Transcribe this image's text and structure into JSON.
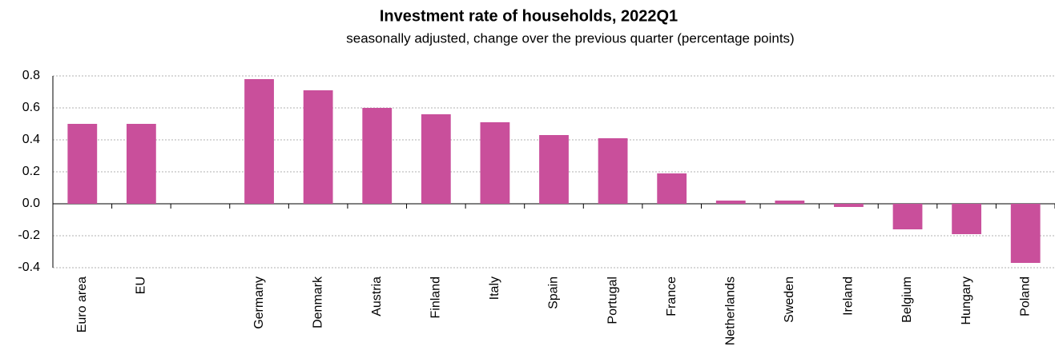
{
  "chart_data": {
    "type": "bar",
    "title": "Investment rate of households, 2022Q1",
    "subtitle": "seasonally adjusted, change over the previous quarter (percentage points)",
    "categories": [
      "Euro area",
      "EU",
      null,
      "Germany",
      "Denmark",
      "Austria",
      "Finland",
      "Italy",
      "Spain",
      "Portugal",
      "France",
      "Netherlands",
      "Sweden",
      "Ireland",
      "Belgium",
      "Hungary",
      "Poland"
    ],
    "values": [
      0.5,
      0.5,
      null,
      0.78,
      0.71,
      0.6,
      0.56,
      0.51,
      0.43,
      0.41,
      0.19,
      0.02,
      0.02,
      -0.02,
      -0.16,
      -0.19,
      -0.37
    ],
    "color": "#c94f9b",
    "ylim": [
      -0.4,
      0.8
    ],
    "yticks": [
      -0.4,
      -0.2,
      {
        "value": 0,
        "label": "0.0"
      },
      0.2,
      0.4,
      0.6,
      0.8
    ],
    "grid": true
  }
}
